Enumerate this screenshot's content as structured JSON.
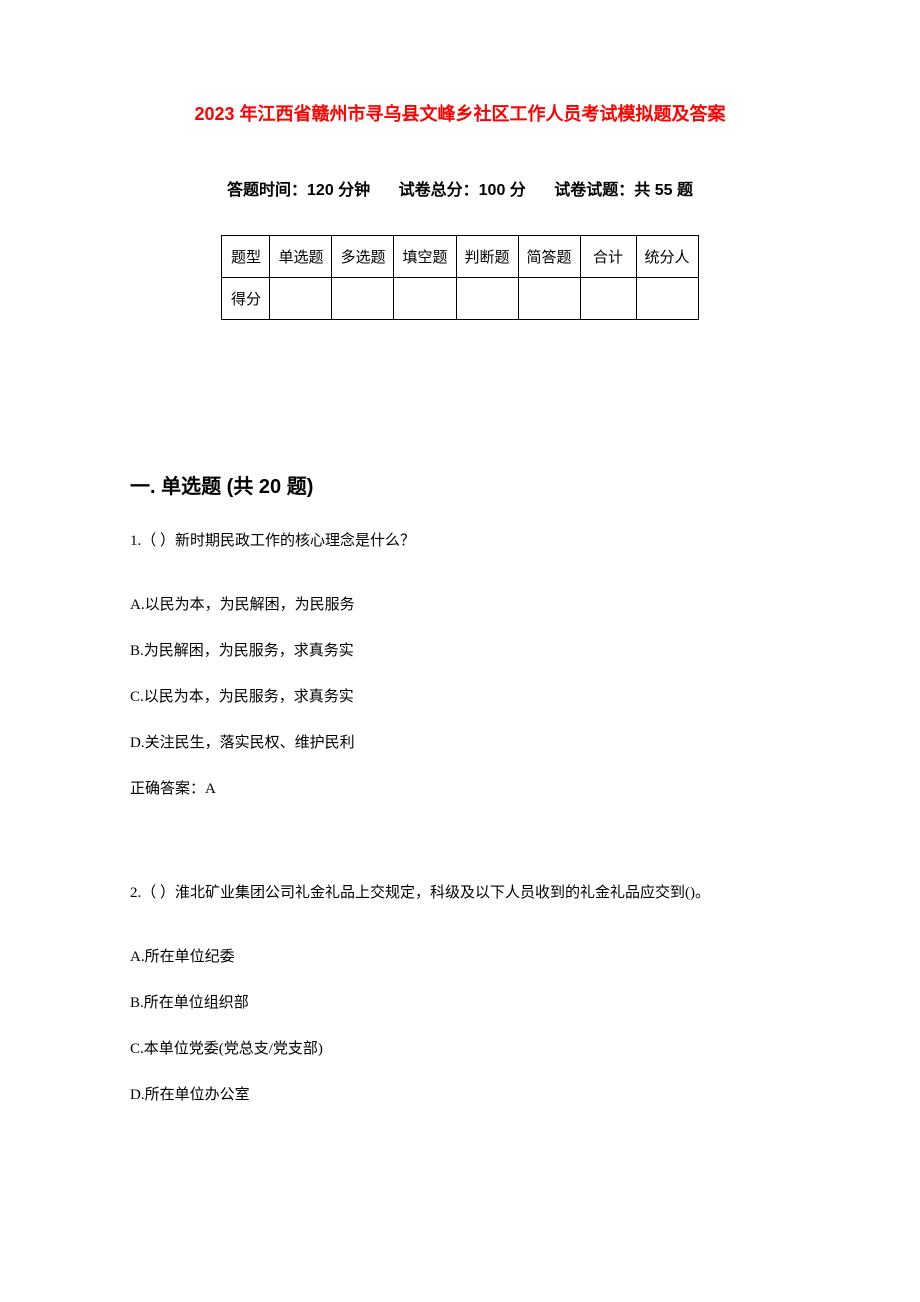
{
  "title": "2023 年江西省赣州市寻乌县文峰乡社区工作人员考试模拟题及答案",
  "examInfo": {
    "time": "答题时间：120 分钟",
    "totalScore": "试卷总分：100 分",
    "totalQuestions": "试卷试题：共 55 题"
  },
  "table": {
    "headers": [
      "题型",
      "单选题",
      "多选题",
      "填空题",
      "判断题",
      "简答题",
      "合计",
      "统分人"
    ],
    "row2Label": "得分"
  },
  "section1": {
    "heading": "一. 单选题 (共 20 题)",
    "question1": {
      "stem": "1.（ ）新时期民政工作的核心理念是什么？",
      "options": {
        "A": "A.以民为本，为民解困，为民服务",
        "B": "B.为民解困，为民服务，求真务实",
        "C": "C.以民为本，为民服务，求真务实",
        "D": "D.关注民生，落实民权、维护民利"
      },
      "answer": "正确答案：A"
    },
    "question2": {
      "stem": "2.（ ）淮北矿业集团公司礼金礼品上交规定，科级及以下人员收到的礼金礼品应交到()。",
      "options": {
        "A": "A.所在单位纪委",
        "B": "B.所在单位组织部",
        "C": "C.本单位党委(党总支/党支部)",
        "D": "D.所在单位办公室"
      }
    }
  }
}
